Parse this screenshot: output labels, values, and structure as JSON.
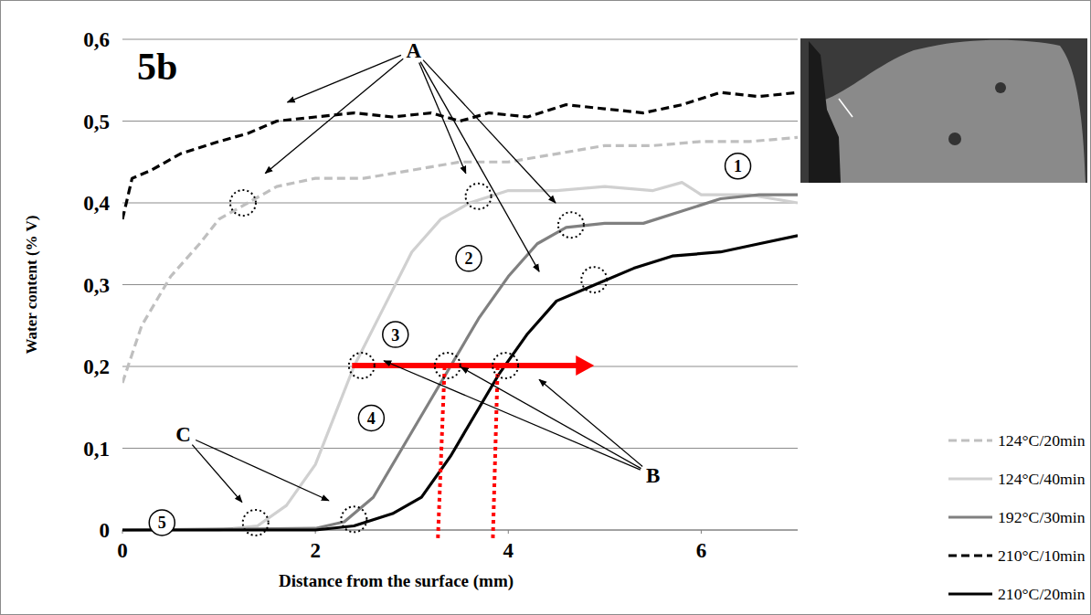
{
  "chart_data": {
    "type": "line",
    "title": "5b",
    "x_label": "Distance from the surface (mm)",
    "y_label": "Water content (% V)",
    "xlim": [
      0,
      7
    ],
    "xticks": [
      0,
      2,
      4,
      6
    ],
    "ylim": [
      0,
      0.6
    ],
    "yticks": [
      0,
      {
        "value": 0.1,
        "label": "0,1"
      },
      {
        "value": 0.2,
        "label": "0,2"
      },
      {
        "value": 0.3,
        "label": "0,3"
      },
      {
        "value": 0.4,
        "label": "0,4"
      },
      {
        "value": 0.5,
        "label": "0,5"
      },
      {
        "value": 0.6,
        "label": "0,6"
      }
    ],
    "grid": true,
    "legend": "right",
    "series": [
      {
        "name": "124°C/20min",
        "color": "#bfbfbf",
        "line_style": "dashed",
        "x": [
          0,
          0.2,
          0.5,
          0.8,
          1.0,
          1.3,
          1.6,
          2.0,
          2.5,
          3.0,
          3.5,
          4.0,
          4.5,
          5.0,
          5.5,
          6.0,
          6.5,
          7.0
        ],
        "values": [
          0.18,
          0.25,
          0.31,
          0.35,
          0.38,
          0.4,
          0.42,
          0.43,
          0.43,
          0.44,
          0.45,
          0.45,
          0.46,
          0.47,
          0.47,
          0.475,
          0.475,
          0.48
        ]
      },
      {
        "name": "124°C/40min",
        "color": "#d0d0d0",
        "line_style": "solid",
        "x": [
          0,
          1.0,
          1.4,
          1.7,
          2.0,
          2.2,
          2.4,
          2.7,
          3.0,
          3.3,
          3.6,
          4.0,
          4.5,
          5.0,
          5.5,
          5.8,
          6.0,
          6.5,
          7.0
        ],
        "values": [
          0,
          0,
          0.005,
          0.03,
          0.08,
          0.14,
          0.2,
          0.27,
          0.34,
          0.38,
          0.4,
          0.415,
          0.415,
          0.42,
          0.415,
          0.425,
          0.41,
          0.41,
          0.4
        ]
      },
      {
        "name": "192°C/30min",
        "color": "#808080",
        "line_style": "solid",
        "x": [
          0,
          2.0,
          2.3,
          2.6,
          2.9,
          3.2,
          3.4,
          3.7,
          4.0,
          4.3,
          4.6,
          5.0,
          5.4,
          5.8,
          6.2,
          6.6,
          7.0
        ],
        "values": [
          0,
          0.002,
          0.01,
          0.04,
          0.1,
          0.16,
          0.2,
          0.26,
          0.31,
          0.35,
          0.37,
          0.375,
          0.375,
          0.39,
          0.405,
          0.41,
          0.41
        ]
      },
      {
        "name": "210°C/10min",
        "color": "#000000",
        "line_style": "dashed",
        "x": [
          0,
          0.1,
          0.3,
          0.6,
          1.0,
          1.3,
          1.6,
          2.0,
          2.4,
          2.8,
          3.2,
          3.5,
          3.8,
          4.2,
          4.6,
          5.0,
          5.4,
          5.8,
          6.2,
          6.6,
          7.0
        ],
        "values": [
          0.38,
          0.43,
          0.44,
          0.46,
          0.475,
          0.485,
          0.5,
          0.505,
          0.51,
          0.505,
          0.51,
          0.5,
          0.51,
          0.505,
          0.52,
          0.515,
          0.51,
          0.52,
          0.535,
          0.53,
          0.535
        ]
      },
      {
        "name": "210°C/20min",
        "color": "#000000",
        "line_style": "solid",
        "x": [
          0,
          2.0,
          2.4,
          2.8,
          3.1,
          3.4,
          3.7,
          3.9,
          4.2,
          4.5,
          4.9,
          5.3,
          5.7,
          6.2,
          6.6,
          7.0
        ],
        "values": [
          0,
          0,
          0.005,
          0.02,
          0.04,
          0.09,
          0.15,
          0.19,
          0.24,
          0.28,
          0.3,
          0.32,
          0.335,
          0.34,
          0.35,
          0.36
        ]
      }
    ],
    "annotations": [
      {
        "text": "A",
        "x": 3.02,
        "y": 0.587,
        "arrows": [
          [
            1.71,
            0.523
          ],
          [
            1.48,
            0.436
          ],
          [
            3.56,
            0.436
          ],
          [
            4.49,
            0.4
          ],
          [
            4.32,
            0.316
          ]
        ],
        "circles": [
          [
            1.25,
            0.4
          ],
          [
            3.69,
            0.408
          ],
          [
            4.65,
            0.373
          ],
          [
            4.89,
            0.306
          ]
        ]
      },
      {
        "text": "B",
        "x": 5.5,
        "y": 0.067,
        "arrows": [
          [
            2.71,
            0.207
          ],
          [
            3.51,
            0.199
          ],
          [
            4.32,
            0.184
          ]
        ],
        "circles": [
          [
            2.48,
            0.201
          ],
          [
            3.37,
            0.201
          ],
          [
            3.97,
            0.201
          ]
        ]
      },
      {
        "text": "C",
        "x": 0.63,
        "y": 0.117,
        "arrows": [
          [
            1.24,
            0.034
          ],
          [
            2.14,
            0.036
          ]
        ],
        "circles": [
          [
            1.38,
            0.009
          ],
          [
            2.4,
            0.013
          ]
        ]
      }
    ],
    "labels": [
      {
        "text": "1",
        "x": 6.38,
        "y": 0.445
      },
      {
        "text": "2",
        "x": 3.59,
        "y": 0.332
      },
      {
        "text": "3",
        "x": 2.83,
        "y": 0.239
      },
      {
        "text": "4",
        "x": 2.58,
        "y": 0.137
      },
      {
        "text": "5",
        "x": 0.41,
        "y": 0.009
      }
    ],
    "red_arrow": {
      "x": [
        2.38,
        4.89
      ],
      "y": 0.201
    },
    "drop_lines": [
      {
        "x": [
          3.34,
          3.27
        ],
        "y": [
          0.2,
          -0.011
        ]
      },
      {
        "x": [
          3.89,
          3.84
        ],
        "y": [
          0.2,
          -0.011
        ]
      }
    ]
  }
}
